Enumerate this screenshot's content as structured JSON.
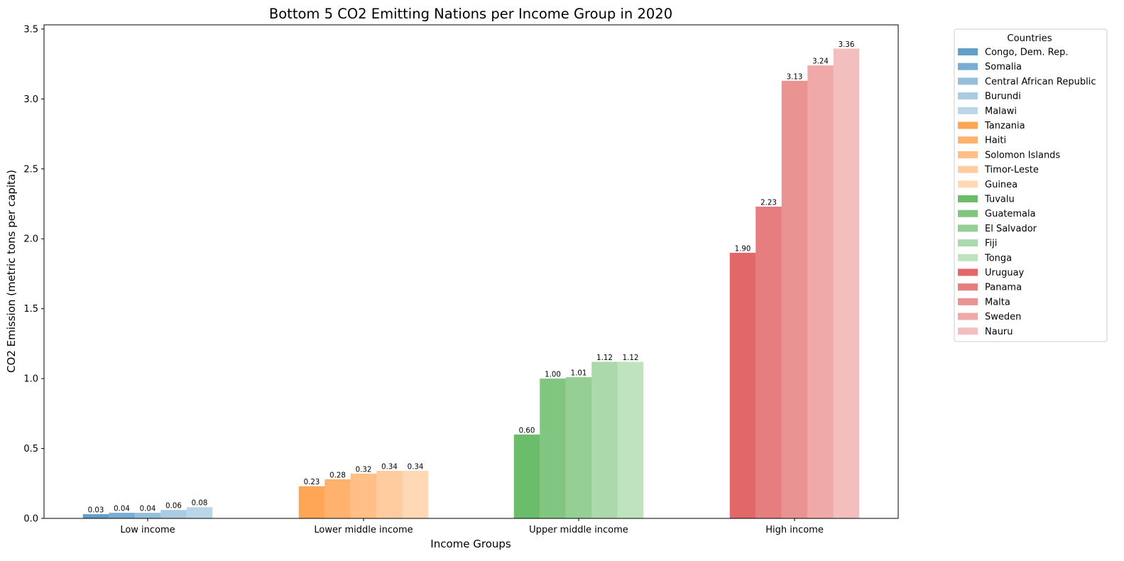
{
  "chart_data": {
    "type": "bar",
    "title": "Bottom 5 CO2 Emitting Nations per Income Group in 2020",
    "xlabel": "Income Groups",
    "ylabel": "CO2 Emission (metric tons per capita)",
    "ylim": [
      0,
      3.53
    ],
    "yticks": [
      "0.0",
      "0.5",
      "1.0",
      "1.5",
      "2.0",
      "2.5",
      "3.0",
      "3.5"
    ],
    "legend_title": "Countries",
    "legend_position": "outside-right-top",
    "grid": false,
    "groups": [
      {
        "name": "Low income",
        "bars": [
          {
            "country": "Congo, Dem. Rep.",
            "value": 0.03,
            "label": "0.03",
            "color": "#1f77b4",
            "alpha": 0.7
          },
          {
            "country": "Somalia",
            "value": 0.04,
            "label": "0.04",
            "color": "#1f77b4",
            "alpha": 0.6
          },
          {
            "country": "Central African Republic",
            "value": 0.04,
            "label": "0.04",
            "color": "#1f77b4",
            "alpha": 0.47
          },
          {
            "country": "Burundi",
            "value": 0.06,
            "label": "0.06",
            "color": "#1f77b4",
            "alpha": 0.38
          },
          {
            "country": "Malawi",
            "value": 0.08,
            "label": "0.08",
            "color": "#1f77b4",
            "alpha": 0.3
          }
        ]
      },
      {
        "name": "Lower middle income",
        "bars": [
          {
            "country": "Tanzania",
            "value": 0.23,
            "label": "0.23",
            "color": "#ff7f0e",
            "alpha": 0.7
          },
          {
            "country": "Haiti",
            "value": 0.28,
            "label": "0.28",
            "color": "#ff7f0e",
            "alpha": 0.6
          },
          {
            "country": "Solomon Islands",
            "value": 0.32,
            "label": "0.32",
            "color": "#ff7f0e",
            "alpha": 0.5
          },
          {
            "country": "Timor-Leste",
            "value": 0.34,
            "label": "0.34",
            "color": "#ff7f0e",
            "alpha": 0.4
          },
          {
            "country": "Guinea",
            "value": 0.34,
            "label": "0.34",
            "color": "#ff7f0e",
            "alpha": 0.3
          }
        ]
      },
      {
        "name": "Upper middle income",
        "bars": [
          {
            "country": "Tuvalu",
            "value": 0.6,
            "label": "0.60",
            "color": "#2ca02c",
            "alpha": 0.7
          },
          {
            "country": "Guatemala",
            "value": 1.0,
            "label": "1.00",
            "color": "#2ca02c",
            "alpha": 0.6
          },
          {
            "country": "El Salvador",
            "value": 1.01,
            "label": "1.01",
            "color": "#2ca02c",
            "alpha": 0.5
          },
          {
            "country": "Fiji",
            "value": 1.12,
            "label": "1.12",
            "color": "#2ca02c",
            "alpha": 0.4
          },
          {
            "country": "Tonga",
            "value": 1.12,
            "label": "1.12",
            "color": "#2ca02c",
            "alpha": 0.3
          }
        ]
      },
      {
        "name": "High income",
        "bars": [
          {
            "country": "Uruguay",
            "value": 1.9,
            "label": "1.90",
            "color": "#d62728",
            "alpha": 0.7
          },
          {
            "country": "Panama",
            "value": 2.23,
            "label": "2.23",
            "color": "#d62728",
            "alpha": 0.6
          },
          {
            "country": "Malta",
            "value": 3.13,
            "label": "3.13",
            "color": "#d62728",
            "alpha": 0.5
          },
          {
            "country": "Sweden",
            "value": 3.24,
            "label": "3.24",
            "color": "#d62728",
            "alpha": 0.4
          },
          {
            "country": "Nauru",
            "value": 3.36,
            "label": "3.36",
            "color": "#d62728",
            "alpha": 0.3
          }
        ]
      }
    ]
  }
}
